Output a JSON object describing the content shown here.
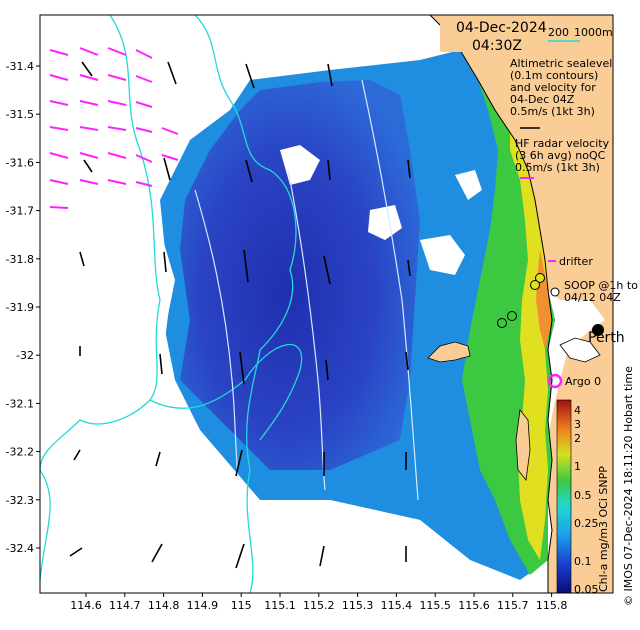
{
  "header": {
    "date": "04-Dec-2024",
    "time": "04:30Z"
  },
  "depth_legend": {
    "label_200": "200",
    "label_1000": "1000m"
  },
  "annotations": {
    "altimetric": [
      "Altimetric sealevel",
      "(0.1m contours)",
      "and velocity for",
      "04-Dec 04Z",
      "0.5m/s (1kt 3h)"
    ],
    "hf_radar": [
      "HF radar velocity",
      "(3 6h avg) noQC",
      "0.5m/s (1kt 3h)"
    ],
    "drifter": "drifter",
    "soop": [
      "SOOP @1h to",
      "04/12 04Z"
    ],
    "argo": "Argo 0",
    "place": "Perth"
  },
  "credit": "© IMOS 07-Dec-2024 18:11:20 Hobart time",
  "colorbar": {
    "title": "Chl-a mg/m3 OCi SNPP",
    "ticks": [
      "4",
      "3",
      "2",
      "1",
      "0.5",
      "0.25",
      "0.1",
      "0.05"
    ]
  },
  "axes": {
    "x_ticks": [
      "114.6",
      "114.7",
      "114.8",
      "114.9",
      "115",
      "115.1",
      "115.2",
      "115.3",
      "115.4",
      "115.5",
      "115.6",
      "115.7",
      "115.8"
    ],
    "y_ticks": [
      "-31.4",
      "-31.5",
      "-31.6",
      "-31.7",
      "-31.8",
      "-31.9",
      "-32",
      "-32.1",
      "-32.2",
      "-32.3",
      "-32.4"
    ]
  },
  "colors": {
    "land": "#fbcd96",
    "isobath": "#22d9d9",
    "hf_radar_arrow": "#ff22ff",
    "altimetry_arrow": "#000000",
    "deep_chl": "#1e2ca8",
    "mid_chl": "#1aa0e0",
    "coastal_chl": "#38c840",
    "high_chl": "#e6e020"
  }
}
